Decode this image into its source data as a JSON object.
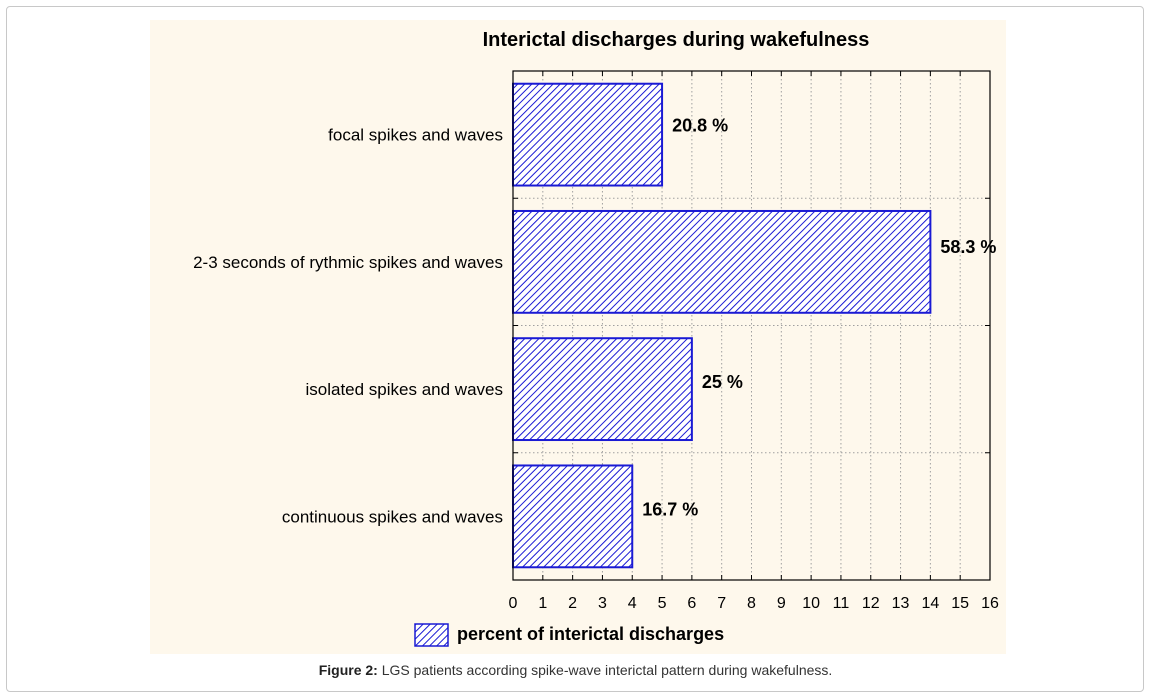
{
  "chart_data": {
    "type": "bar",
    "orientation": "horizontal",
    "title": "Interictal discharges during wakefulness",
    "categories": [
      "focal spikes and waves",
      "2-3 seconds of rythmic spikes and waves",
      "isolated spikes and waves",
      "continuous spikes and waves"
    ],
    "series": [
      {
        "name": "percent of interictal discharges",
        "values": [
          5,
          14,
          6,
          4
        ],
        "data_labels": [
          "20.8 %",
          "58.3 %",
          "25 %",
          "16.7 %"
        ]
      }
    ],
    "xlim": [
      0,
      16
    ],
    "x_ticks": [
      "0",
      "1",
      "2",
      "3",
      "4",
      "5",
      "6",
      "7",
      "8",
      "9",
      "10",
      "11",
      "12",
      "13",
      "14",
      "15",
      "16"
    ],
    "grid": true,
    "legend_position": "bottom",
    "bar_color": "#1a1ad4",
    "panel_color": "#fef8ec"
  },
  "caption": {
    "label": "Figure 2:",
    "text": " LGS patients according spike-wave interictal pattern during wakefulness."
  }
}
